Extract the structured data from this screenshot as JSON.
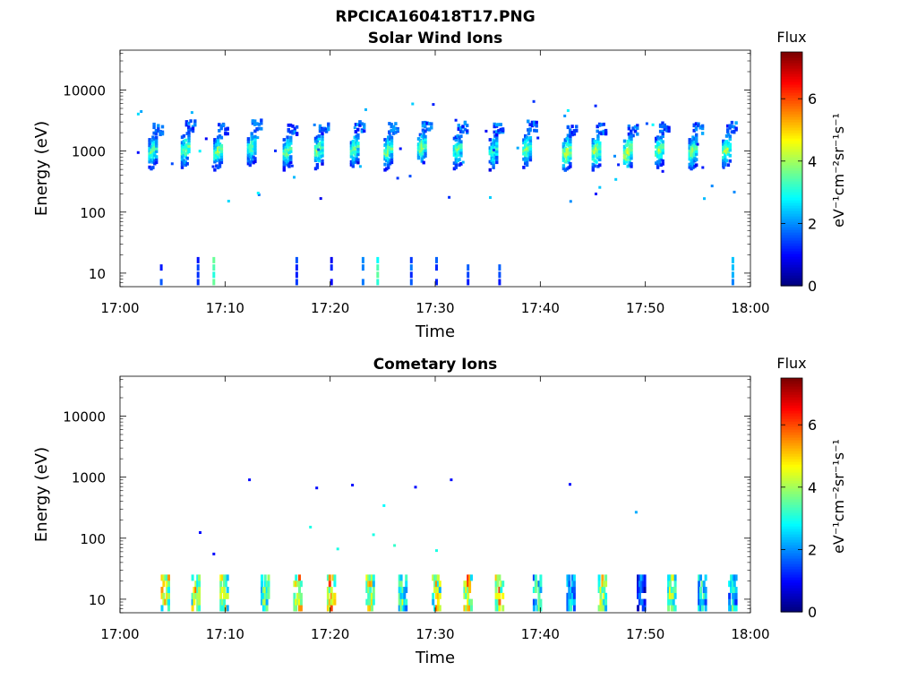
{
  "figure_title": "RPCICA160418T17.PNG",
  "colors": {
    "jet": [
      "#00007f",
      "#0000ff",
      "#007fff",
      "#00ffff",
      "#7fff7f",
      "#ffff00",
      "#ff7f00",
      "#ff0000",
      "#7f0000"
    ]
  },
  "chart_data": [
    {
      "type": "heatmap",
      "title": "Solar Wind Ions",
      "xlabel": "Time",
      "ylabel": "Energy (eV)",
      "x_ticks": [
        "17:00",
        "17:10",
        "17:20",
        "17:30",
        "17:40",
        "17:50",
        "18:00"
      ],
      "x_range_minutes": [
        0,
        60
      ],
      "y_ticks": [
        "10",
        "100",
        "1000",
        "10000"
      ],
      "y_scale": "log",
      "ylim": [
        6,
        45000
      ],
      "colorbar": {
        "label": "Flux",
        "unit_label": "eV⁻¹cm⁻²sr⁻¹s⁻¹",
        "ticks": [
          "0",
          "2",
          "4",
          "6"
        ],
        "range": [
          0,
          7.5
        ],
        "colormap": "jet"
      },
      "grid": false,
      "bursts": [
        {
          "t": 3.0,
          "e": 1000,
          "v": 3.8
        },
        {
          "t": 6.1,
          "e": 1100,
          "v": 3.9
        },
        {
          "t": 9.2,
          "e": 1000,
          "v": 4.0
        },
        {
          "t": 12.4,
          "e": 1150,
          "v": 3.7
        },
        {
          "t": 15.8,
          "e": 1000,
          "v": 3.8
        },
        {
          "t": 18.8,
          "e": 1050,
          "v": 4.0
        },
        {
          "t": 22.2,
          "e": 1100,
          "v": 3.8
        },
        {
          "t": 25.4,
          "e": 1000,
          "v": 4.0
        },
        {
          "t": 28.6,
          "e": 1150,
          "v": 4.0
        },
        {
          "t": 32.0,
          "e": 1050,
          "v": 3.8
        },
        {
          "t": 35.4,
          "e": 1000,
          "v": 3.7
        },
        {
          "t": 38.6,
          "e": 1100,
          "v": 3.9
        },
        {
          "t": 42.4,
          "e": 950,
          "v": 4.5
        },
        {
          "t": 45.2,
          "e": 1000,
          "v": 4.4
        },
        {
          "t": 48.2,
          "e": 950,
          "v": 4.6
        },
        {
          "t": 51.2,
          "e": 1050,
          "v": 4.1
        },
        {
          "t": 54.4,
          "e": 1000,
          "v": 4.0
        },
        {
          "t": 57.6,
          "e": 1050,
          "v": 4.2
        }
      ],
      "low_energy": [
        {
          "t": 3.8,
          "v": 1.0
        },
        {
          "t": 7.3,
          "v": 0.8
        },
        {
          "t": 8.8,
          "v": 3.0
        },
        {
          "t": 16.7,
          "v": 1.0
        },
        {
          "t": 20.0,
          "v": 0.8
        },
        {
          "t": 23.0,
          "v": 1.2
        },
        {
          "t": 24.4,
          "v": 2.8
        },
        {
          "t": 27.6,
          "v": 1.2
        },
        {
          "t": 30.0,
          "v": 1.0
        },
        {
          "t": 33.0,
          "v": 0.9
        },
        {
          "t": 36.0,
          "v": 1.1
        },
        {
          "t": 58.2,
          "v": 1.6
        }
      ]
    },
    {
      "type": "heatmap",
      "title": "Cometary Ions",
      "xlabel": "Time",
      "ylabel": "Energy (eV)",
      "x_ticks": [
        "17:00",
        "17:10",
        "17:20",
        "17:30",
        "17:40",
        "17:50",
        "18:00"
      ],
      "x_range_minutes": [
        0,
        60
      ],
      "y_ticks": [
        "10",
        "100",
        "1000",
        "10000"
      ],
      "y_scale": "log",
      "ylim": [
        6,
        45000
      ],
      "colorbar": {
        "label": "Flux",
        "unit_label": "eV⁻¹cm⁻²sr⁻¹s⁻¹",
        "ticks": [
          "0",
          "2",
          "4",
          "6"
        ],
        "range": [
          0,
          7.5
        ],
        "colormap": "jet"
      },
      "grid": false,
      "columns": [
        {
          "t": 4.2,
          "v": 6.2
        },
        {
          "t": 7.1,
          "v": 5.8
        },
        {
          "t": 9.8,
          "v": 5.5
        },
        {
          "t": 13.7,
          "v": 4.8
        },
        {
          "t": 16.8,
          "v": 6.3
        },
        {
          "t": 20.0,
          "v": 6.6
        },
        {
          "t": 23.7,
          "v": 5.6
        },
        {
          "t": 26.8,
          "v": 4.6
        },
        {
          "t": 30.0,
          "v": 5.6
        },
        {
          "t": 33.0,
          "v": 6.4
        },
        {
          "t": 36.0,
          "v": 6.0
        },
        {
          "t": 39.6,
          "v": 4.2
        },
        {
          "t": 42.8,
          "v": 3.6
        },
        {
          "t": 45.8,
          "v": 5.2
        },
        {
          "t": 49.5,
          "v": 2.4
        },
        {
          "t": 52.4,
          "v": 5.0
        },
        {
          "t": 55.3,
          "v": 4.0
        },
        {
          "t": 58.2,
          "v": 3.8
        }
      ],
      "scatter": [
        {
          "t": 12.2,
          "e": 950,
          "v": 1.0
        },
        {
          "t": 18.6,
          "e": 700,
          "v": 1.0
        },
        {
          "t": 22.0,
          "e": 780,
          "v": 1.0
        },
        {
          "t": 28.0,
          "e": 720,
          "v": 1.0
        },
        {
          "t": 31.4,
          "e": 950,
          "v": 1.0
        },
        {
          "t": 42.7,
          "e": 800,
          "v": 1.0
        },
        {
          "t": 49.0,
          "e": 280,
          "v": 2.2
        },
        {
          "t": 25.0,
          "e": 360,
          "v": 2.8
        },
        {
          "t": 18.0,
          "e": 160,
          "v": 3.0
        },
        {
          "t": 7.5,
          "e": 130,
          "v": 1.0
        },
        {
          "t": 8.8,
          "e": 58,
          "v": 1.0
        },
        {
          "t": 24.0,
          "e": 120,
          "v": 3.0
        },
        {
          "t": 26.0,
          "e": 80,
          "v": 3.2
        },
        {
          "t": 20.6,
          "e": 70,
          "v": 3.0
        },
        {
          "t": 30.0,
          "e": 66,
          "v": 3.0
        }
      ]
    }
  ]
}
